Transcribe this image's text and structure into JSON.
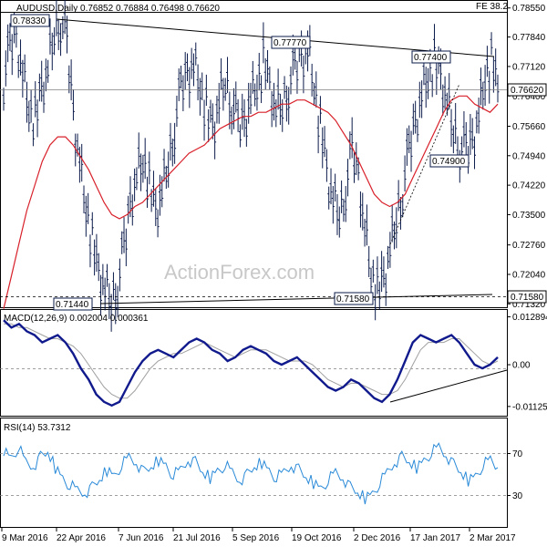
{
  "chart_data": [
    {
      "type": "line",
      "panel": "price",
      "title": "AUDUSD,Daily",
      "ohlc_header": "0.76852 0.76884 0.76498 0.76620",
      "fe_label": "FE 38.2",
      "watermark": "ActionForex.com",
      "ylim": [
        0.7126,
        0.787
      ],
      "y_ticks": [
        "0.78550",
        "0.77840",
        "0.77120",
        "0.76400",
        "0.75660",
        "0.74940",
        "0.74220",
        "0.73500",
        "0.72760",
        "0.72040",
        "0.71320"
      ],
      "x_ticks": [
        "9 Mar 2016",
        "22 Apr 2016",
        "7 Jun 2016",
        "21 Jul 2016",
        "5 Sep 2016",
        "19 Oct 2016",
        "2 Dec 2016",
        "17 Jan 2017",
        "2 Mar 2017"
      ],
      "last_price": "0.76620",
      "support_label": "0.71580",
      "annotations": [
        "0.78330",
        "0.77770",
        "0.77400",
        "0.74900",
        "0.71440",
        "0.71580"
      ],
      "price_series": [
        0.768,
        0.775,
        0.779,
        0.77,
        0.762,
        0.758,
        0.765,
        0.77,
        0.78,
        0.783,
        0.776,
        0.76,
        0.748,
        0.738,
        0.728,
        0.72,
        0.716,
        0.714,
        0.718,
        0.726,
        0.738,
        0.745,
        0.75,
        0.742,
        0.735,
        0.74,
        0.748,
        0.757,
        0.765,
        0.77,
        0.772,
        0.768,
        0.76,
        0.755,
        0.762,
        0.768,
        0.763,
        0.756,
        0.758,
        0.764,
        0.768,
        0.772,
        0.766,
        0.76,
        0.762,
        0.767,
        0.77,
        0.774,
        0.776,
        0.768,
        0.756,
        0.745,
        0.738,
        0.735,
        0.742,
        0.75,
        0.745,
        0.732,
        0.722,
        0.716,
        0.718,
        0.726,
        0.734,
        0.742,
        0.75,
        0.758,
        0.765,
        0.77,
        0.772,
        0.768,
        0.762,
        0.756,
        0.752,
        0.75,
        0.753,
        0.76,
        0.77,
        0.772,
        0.766
      ],
      "ma_series": [
        0.712,
        0.72,
        0.728,
        0.736,
        0.742,
        0.748,
        0.752,
        0.754,
        0.754,
        0.752,
        0.749,
        0.746,
        0.742,
        0.738,
        0.735,
        0.734,
        0.735,
        0.737,
        0.738,
        0.74,
        0.742,
        0.744,
        0.746,
        0.748,
        0.75,
        0.751,
        0.752,
        0.754,
        0.756,
        0.757,
        0.758,
        0.759,
        0.759,
        0.76,
        0.76,
        0.761,
        0.762,
        0.762,
        0.763,
        0.763,
        0.762,
        0.761,
        0.76,
        0.758,
        0.755,
        0.752,
        0.748,
        0.744,
        0.74,
        0.738,
        0.737,
        0.738,
        0.74,
        0.744,
        0.748,
        0.752,
        0.756,
        0.76,
        0.763,
        0.764,
        0.764,
        0.762,
        0.761,
        0.76,
        0.762
      ],
      "series": [
        {
          "name": "",
          "color": "#0b1b4b"
        },
        {
          "name": "",
          "color": "#d8202a"
        }
      ]
    },
    {
      "type": "line",
      "panel": "macd",
      "title": "MACD(12,26,9) 0.002004 0.000361",
      "ylim": [
        -0.0135,
        0.0145
      ],
      "y_ticks": [
        "0.012894",
        "0.00",
        "-0.011253"
      ],
      "macd_series": [
        0.012,
        0.01,
        0.011,
        0.009,
        0.008,
        0.006,
        0.007,
        0.008,
        0.006,
        0.003,
        -0.001,
        -0.004,
        -0.008,
        -0.01,
        -0.011,
        -0.01,
        -0.006,
        -0.002,
        0.001,
        0.003,
        0.004,
        0.003,
        0.002,
        0.004,
        0.006,
        0.007,
        0.006,
        0.004,
        0.003,
        0.001,
        0.002,
        0.004,
        0.005,
        0.004,
        0.003,
        0.001,
        0.0,
        0.001,
        0.002,
        0.0,
        -0.002,
        -0.004,
        -0.006,
        -0.007,
        -0.006,
        -0.004,
        -0.005,
        -0.007,
        -0.009,
        -0.01,
        -0.008,
        -0.004,
        0.001,
        0.006,
        0.008,
        0.007,
        0.006,
        0.007,
        0.008,
        0.006,
        0.003,
        0.0,
        -0.001,
        0.0,
        0.002
      ],
      "signal_series": [
        0.011,
        0.011,
        0.01,
        0.01,
        0.009,
        0.008,
        0.007,
        0.007,
        0.006,
        0.005,
        0.003,
        0.0,
        -0.003,
        -0.006,
        -0.008,
        -0.009,
        -0.009,
        -0.007,
        -0.004,
        -0.001,
        0.001,
        0.002,
        0.003,
        0.003,
        0.004,
        0.005,
        0.006,
        0.005,
        0.004,
        0.003,
        0.002,
        0.003,
        0.004,
        0.004,
        0.004,
        0.003,
        0.002,
        0.001,
        0.001,
        0.001,
        0.0,
        -0.002,
        -0.004,
        -0.005,
        -0.006,
        -0.005,
        -0.005,
        -0.006,
        -0.007,
        -0.008,
        -0.008,
        -0.007,
        -0.004,
        0.0,
        0.004,
        0.006,
        0.006,
        0.006,
        0.007,
        0.007,
        0.005,
        0.003,
        0.001,
        0.0,
        0.001
      ]
    },
    {
      "type": "line",
      "panel": "rsi",
      "title": "RSI(14) 53.7312",
      "ylim": [
        0,
        100
      ],
      "y_ticks": [
        "70",
        "30"
      ],
      "rsi_series": [
        68,
        62,
        70,
        58,
        55,
        62,
        66,
        54,
        46,
        40,
        36,
        34,
        38,
        44,
        52,
        48,
        56,
        62,
        58,
        50,
        54,
        60,
        56,
        48,
        52,
        60,
        58,
        50,
        46,
        52,
        56,
        50,
        44,
        48,
        54,
        58,
        52,
        46,
        50,
        56,
        52,
        46,
        42,
        38,
        44,
        50,
        46,
        38,
        34,
        30,
        34,
        42,
        50,
        58,
        62,
        58,
        54,
        60,
        66,
        70,
        64,
        56,
        50,
        44,
        48,
        56,
        60,
        54
      ]
    }
  ]
}
